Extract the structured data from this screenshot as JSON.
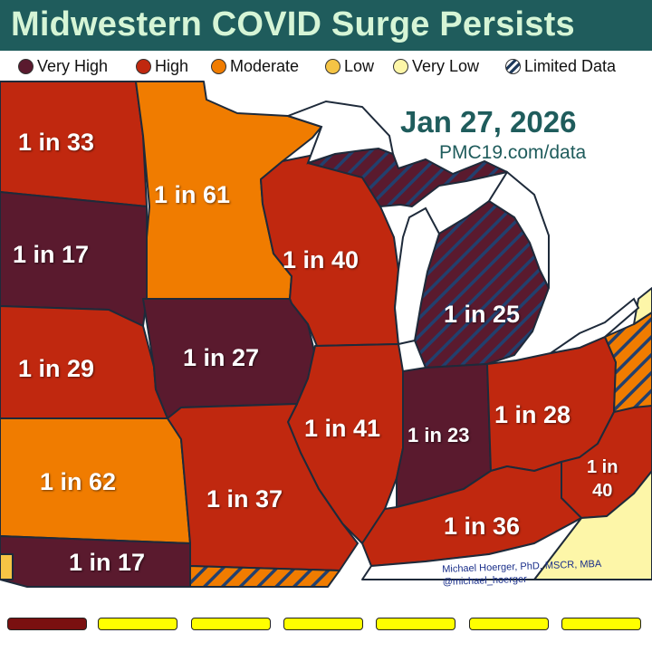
{
  "header": {
    "title": "Midwestern COVID Surge Persists"
  },
  "legend": {
    "items": [
      {
        "label": "Very High",
        "color": "#5a1a2e",
        "hatched": false
      },
      {
        "label": "High",
        "color": "#c0280f",
        "hatched": false
      },
      {
        "label": "Moderate",
        "color": "#f07c00",
        "hatched": false
      },
      {
        "label": "Low",
        "color": "#f5c445",
        "hatched": false
      },
      {
        "label": "Very Low",
        "color": "#fdf6a8",
        "hatched": false
      },
      {
        "label": "Limited Data",
        "color": "#ffffff",
        "hatched": true
      }
    ]
  },
  "map": {
    "date": "Jan 27, 2026",
    "source": "PMC19.com/data",
    "states": [
      {
        "name": "north-dakota",
        "label": "1 in 33",
        "level": "High"
      },
      {
        "name": "minnesota",
        "label": "1 in 61",
        "level": "Moderate"
      },
      {
        "name": "south-dakota",
        "label": "1 in 17",
        "level": "Very High"
      },
      {
        "name": "wisconsin",
        "label": "1 in 40",
        "level": "High"
      },
      {
        "name": "michigan",
        "label": "1 in 25",
        "level": "Very High"
      },
      {
        "name": "iowa",
        "label": "1 in 27",
        "level": "Very High"
      },
      {
        "name": "nebraska",
        "label": "1 in 29",
        "level": "High"
      },
      {
        "name": "illinois",
        "label": "1 in 41",
        "level": "High"
      },
      {
        "name": "indiana",
        "label": "1 in 23",
        "level": "Very High"
      },
      {
        "name": "ohio",
        "label": "1 in 28",
        "level": "High"
      },
      {
        "name": "kansas",
        "label": "1 in 62",
        "level": "Moderate"
      },
      {
        "name": "missouri",
        "label": "1 in 37",
        "level": "High"
      },
      {
        "name": "kentucky",
        "label": "1 in 36",
        "level": "High"
      },
      {
        "name": "west-virginia",
        "label_line1": "1 in",
        "label_line2": "40",
        "level": "High"
      },
      {
        "name": "oklahoma",
        "label": "1 in 17",
        "level": "Very High"
      }
    ]
  },
  "credit": {
    "line1": "Michael Hoerger, PhD, MSCR, MBA",
    "line2": "@michael_hoerger"
  },
  "bottom_bars": [
    {
      "color": "#7a1010"
    },
    {
      "color": "#ffff00"
    },
    {
      "color": "#ffff00"
    },
    {
      "color": "#ffff00"
    },
    {
      "color": "#ffff00"
    },
    {
      "color": "#ffff00"
    },
    {
      "color": "#ffff00"
    }
  ]
}
